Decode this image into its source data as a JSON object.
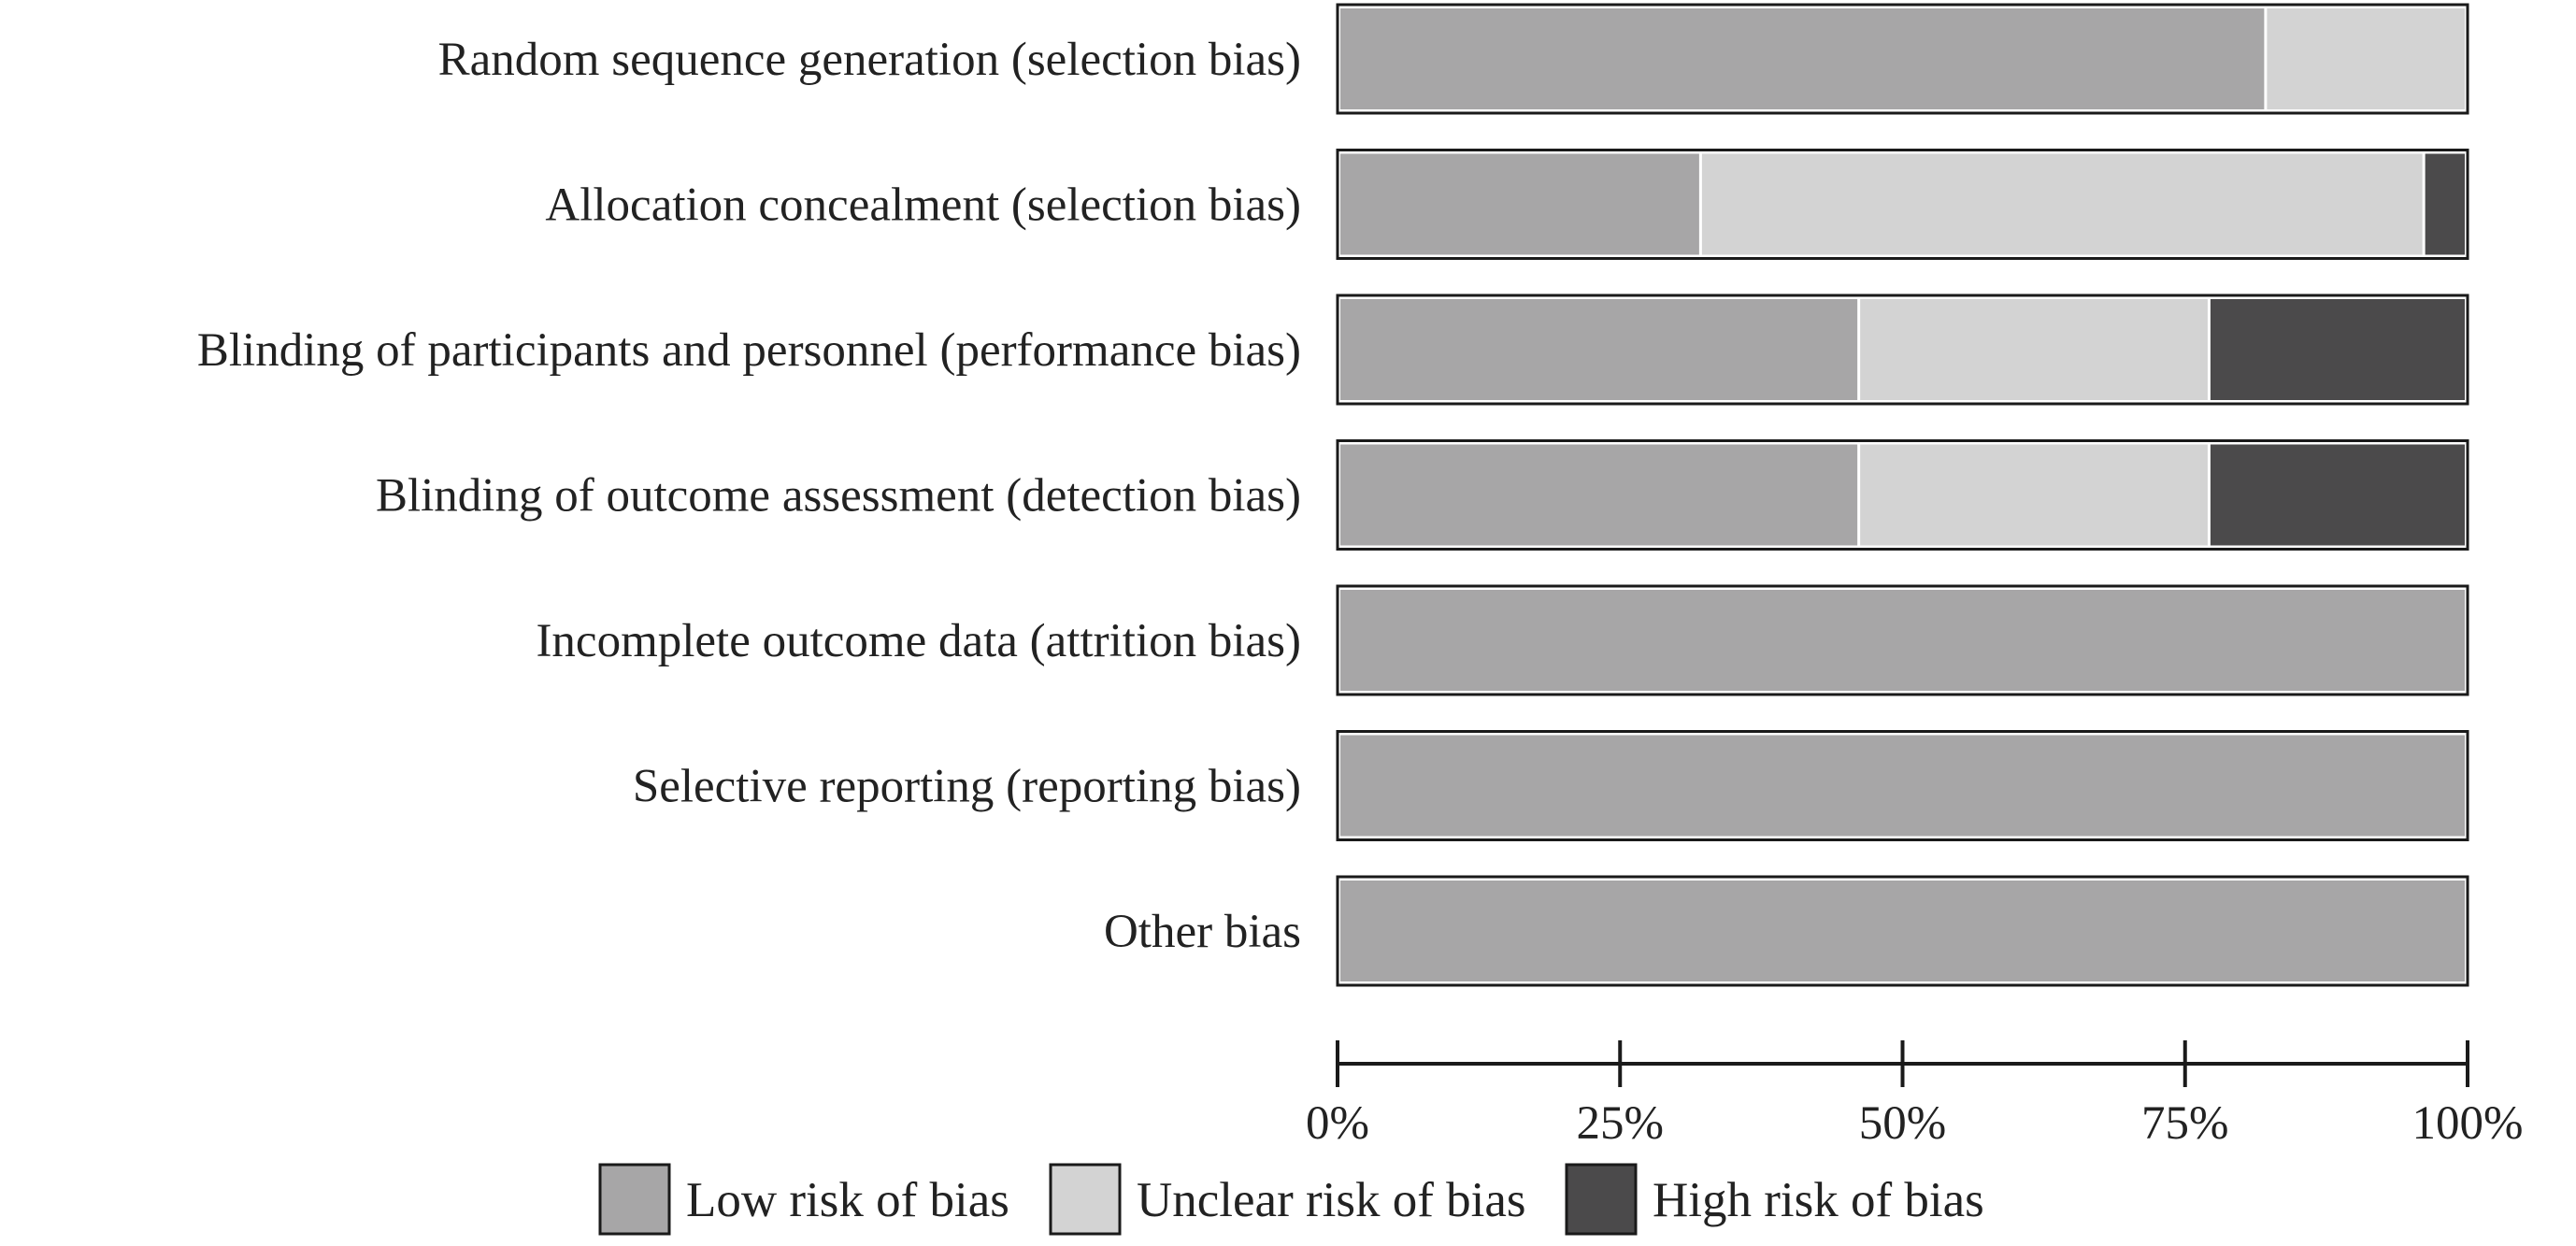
{
  "chart_data": {
    "type": "bar",
    "orientation": "horizontal",
    "stacked": true,
    "percent": true,
    "title": "",
    "xlabel": "",
    "ylabel": "",
    "xlim": [
      0,
      100
    ],
    "grid": false,
    "legend_position": "bottom",
    "categories": [
      "Random sequence generation (selection bias)",
      "Allocation concealment (selection bias)",
      "Blinding of participants and personnel (performance bias)",
      "Blinding of outcome assessment (detection bias)",
      "Incomplete outcome data (attrition bias)",
      "Selective reporting (reporting bias)",
      "Other bias"
    ],
    "series": [
      {
        "name": "Low risk of bias",
        "color": "#a7a6a7",
        "values": [
          82,
          32,
          46,
          46,
          100,
          100,
          100
        ]
      },
      {
        "name": "Unclear risk of bias",
        "color": "#d3d3d3",
        "values": [
          18,
          64,
          31,
          31,
          0,
          0,
          0
        ]
      },
      {
        "name": "High risk of bias",
        "color": "#4b4a4b",
        "values": [
          0,
          4,
          23,
          23,
          0,
          0,
          0
        ]
      }
    ],
    "x_ticks": [
      0,
      25,
      50,
      75,
      100
    ],
    "x_tick_labels": [
      "0%",
      "25%",
      "50%",
      "75%",
      "100%"
    ]
  }
}
